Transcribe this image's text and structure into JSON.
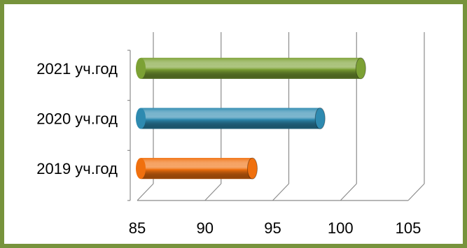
{
  "colors": {
    "border": "#77933C",
    "grid": "#8C8C8C",
    "bar_2019": "#F0700E",
    "bar_2020": "#2E8AB0",
    "bar_2021": "#7CA134"
  },
  "chart_data": {
    "type": "bar",
    "orientation": "horizontal",
    "style": "3d-cylinder",
    "categories": [
      "2019 уч.год",
      "2020 уч.год",
      "2021 уч.год"
    ],
    "values": [
      93.5,
      98.5,
      101.5
    ],
    "xlim": [
      85,
      105
    ],
    "x_ticks": [
      "85",
      "90",
      "95",
      "100",
      "105"
    ],
    "grid": true,
    "legend": "none",
    "title": "",
    "xlabel": "",
    "ylabel": ""
  }
}
